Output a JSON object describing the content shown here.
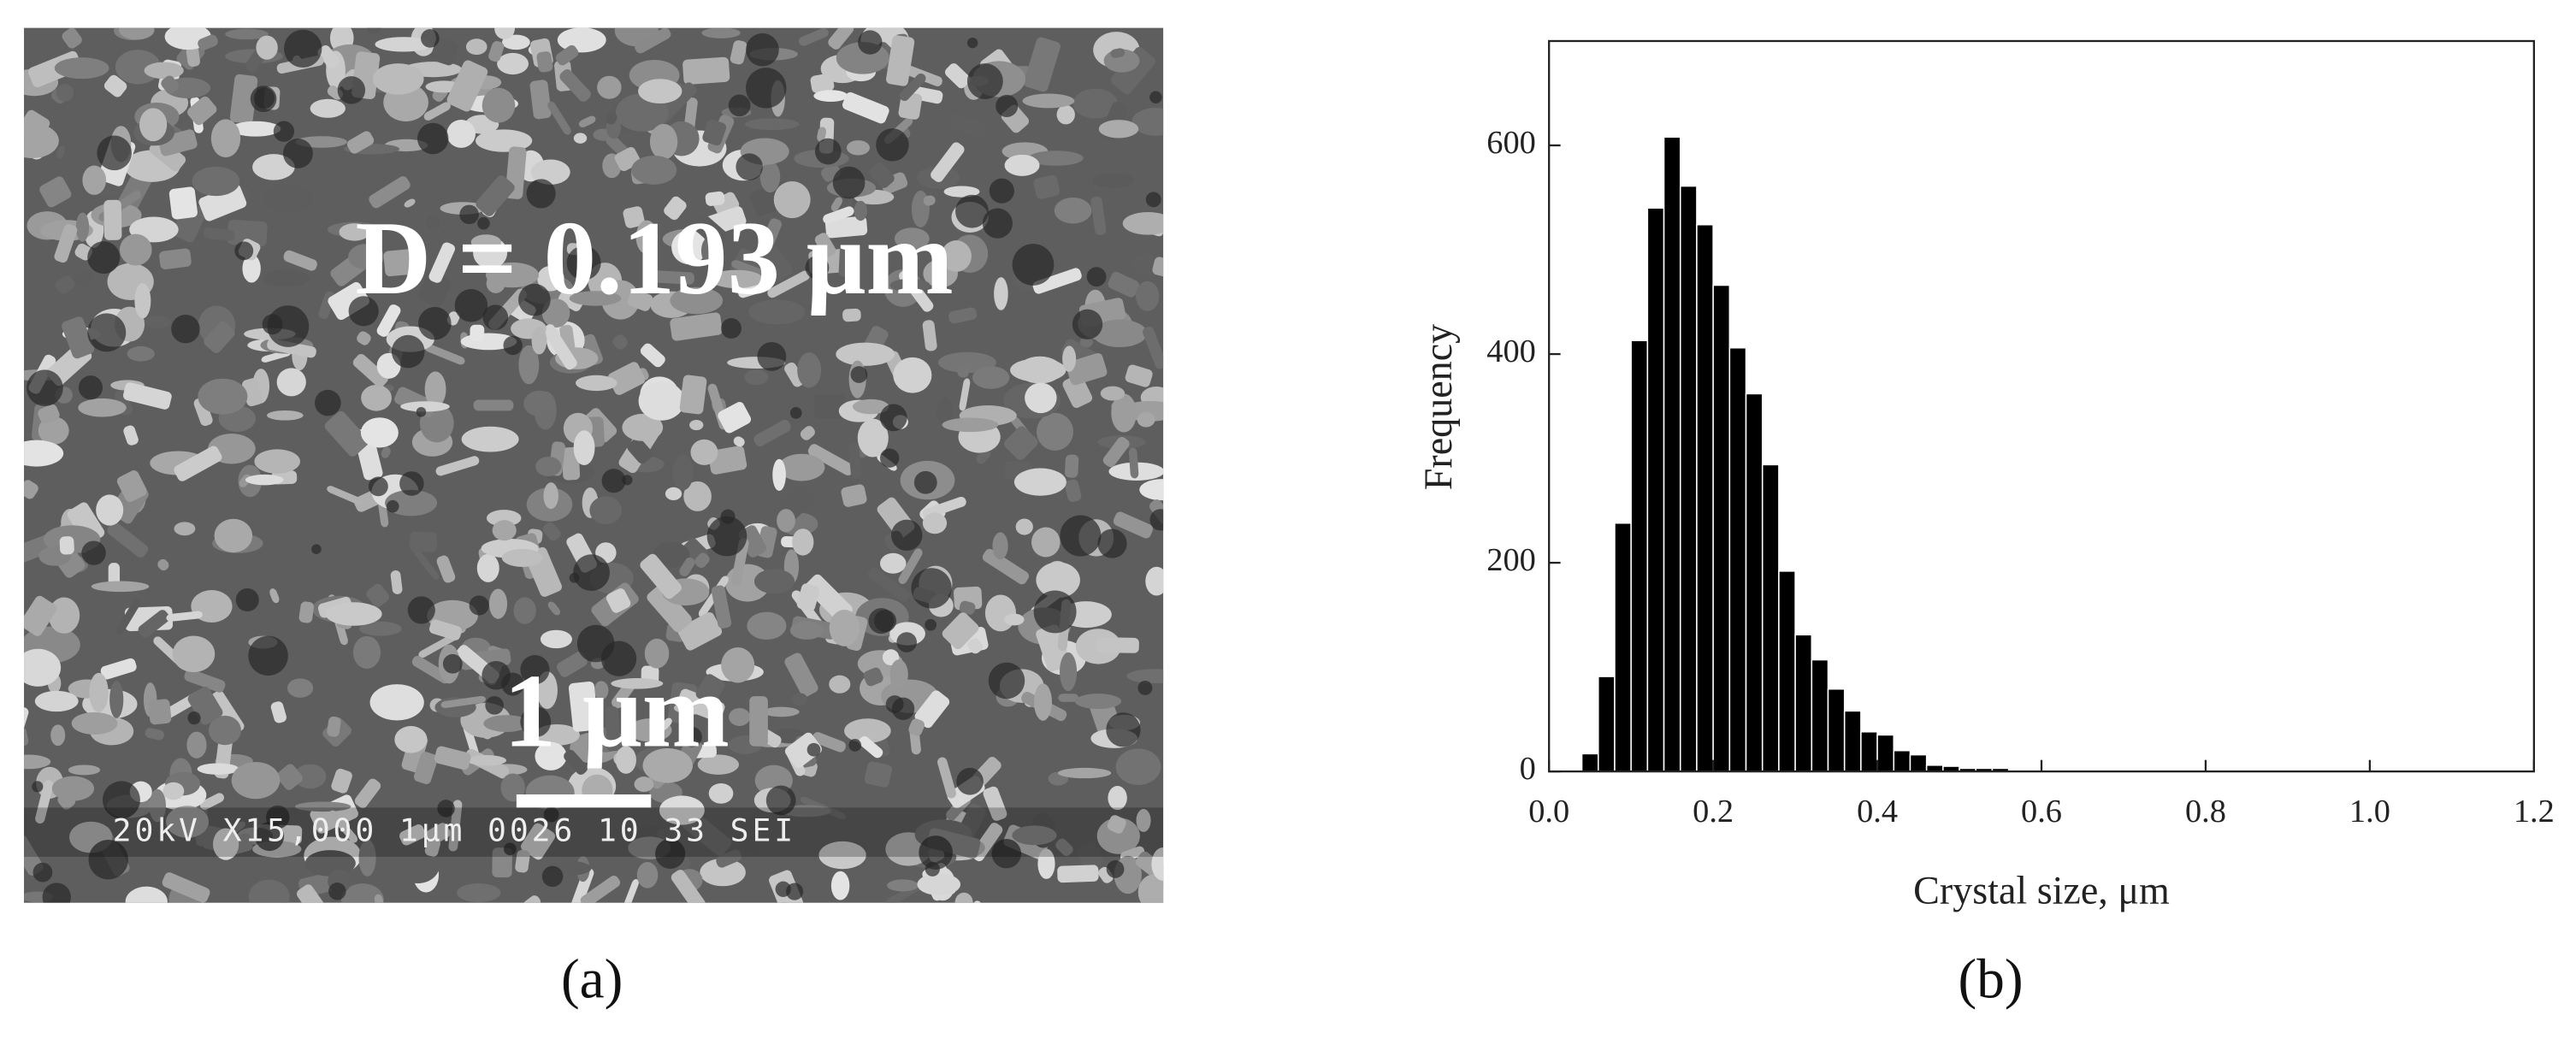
{
  "sem_image": {
    "annotation": "D = 0.193 μm",
    "scale_label": "1 μm",
    "info_bar": "20kV  X15,000   1μm 0026 10 33 SEI"
  },
  "captions": [
    "(a)",
    "(b)"
  ],
  "chart_data": {
    "type": "histogram",
    "xlabel": "Crystal size, μm",
    "ylabel": "Frequency",
    "bins": [
      0.04,
      0.06,
      0.08,
      0.1,
      0.12,
      0.14,
      0.16,
      0.18,
      0.2,
      0.22,
      0.24,
      0.26,
      0.28,
      0.3,
      0.32,
      0.34,
      0.36,
      0.38,
      0.4,
      0.42,
      0.44,
      0.46,
      0.48,
      0.5,
      0.52,
      0.54,
      0.56
    ],
    "counts": [
      17,
      91,
      238,
      413,
      540,
      608,
      561,
      524,
      466,
      406,
      362,
      294,
      192,
      131,
      107,
      79,
      58,
      38,
      35,
      20,
      16,
      6,
      5,
      3,
      3,
      3
    ],
    "color": "#000000",
    "xlim": [
      0,
      1.2
    ],
    "xticks": [
      {
        "value": 0,
        "label": "0.0"
      },
      0.2,
      0.4,
      0.6,
      0.8,
      {
        "value": 1,
        "label": "1.0"
      },
      1.2
    ],
    "ylim": [
      0,
      700
    ],
    "yticks": [
      0,
      200,
      400,
      600
    ]
  }
}
